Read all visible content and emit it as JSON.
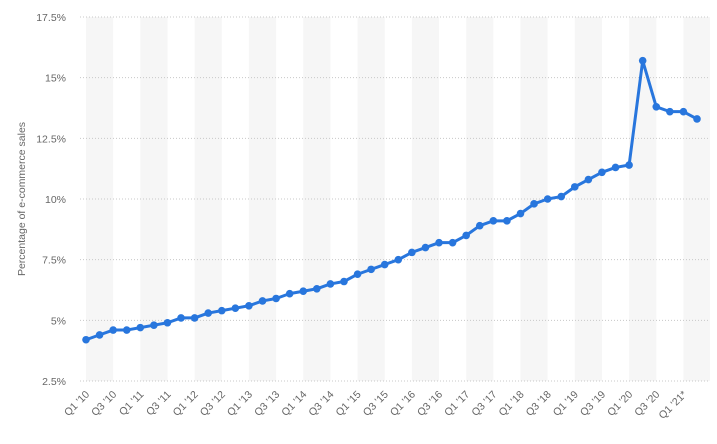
{
  "chart_data": {
    "type": "line",
    "y_label": "Percentage of e-commerce sales",
    "categories": [
      "Q1 '10",
      null,
      "Q3 '10",
      null,
      "Q1 '11",
      null,
      "Q3 '11",
      null,
      "Q1 '12",
      null,
      "Q3 '12",
      null,
      "Q1 '13",
      null,
      "Q3 '13",
      null,
      "Q1 '14",
      null,
      "Q3 '14",
      null,
      "Q1 '15",
      null,
      "Q3 '15",
      null,
      "Q1 '16",
      null,
      "Q3 '16",
      null,
      "Q1 '17",
      null,
      "Q3 '17",
      null,
      "Q1 '18",
      null,
      "Q3 '18",
      null,
      "Q1 '19",
      null,
      "Q3 '19",
      null,
      "Q1 '20",
      null,
      "Q3 '20",
      null,
      "Q1 '21*",
      null
    ],
    "series": [
      {
        "color": "#2876dd",
        "values": [
          4.2,
          4.4,
          4.6,
          4.6,
          4.7,
          4.8,
          4.9,
          5.1,
          5.1,
          5.3,
          5.4,
          5.5,
          5.6,
          5.8,
          5.9,
          6.1,
          6.2,
          6.3,
          6.5,
          6.6,
          6.9,
          7.1,
          7.3,
          7.5,
          7.8,
          8.0,
          8.2,
          8.2,
          8.5,
          8.9,
          9.1,
          9.1,
          9.4,
          9.8,
          10.0,
          10.1,
          10.5,
          10.8,
          11.1,
          11.3,
          11.4,
          15.7,
          13.8,
          13.6,
          13.6,
          13.3
        ]
      }
    ],
    "ylim": [
      2.5,
      17.5
    ],
    "yticks": [
      {
        "value": 2.5,
        "label": "2.5%"
      },
      {
        "value": 5,
        "label": "5%"
      },
      {
        "value": 7.5,
        "label": "7.5%"
      },
      {
        "value": 10,
        "label": "10%"
      },
      {
        "value": 12.5,
        "label": "12.5%"
      },
      {
        "value": 15,
        "label": "15%"
      },
      {
        "value": 17.5,
        "label": "17.5%"
      }
    ],
    "grid": true
  }
}
